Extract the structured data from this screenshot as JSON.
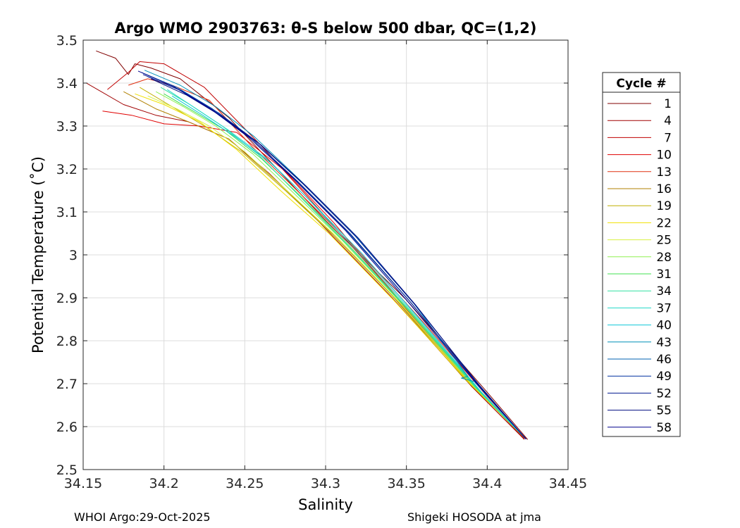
{
  "chart_data": {
    "type": "line",
    "title": "Argo WMO 2903763: θ-S below 500 dbar,  QC=(1,2)",
    "xlabel": "Salinity",
    "ylabel": "Potential Temperature (˚C)",
    "xlim": [
      34.15,
      34.45
    ],
    "ylim": [
      2.5,
      3.5
    ],
    "xticks": [
      34.15,
      34.2,
      34.25,
      34.3,
      34.35,
      34.4,
      34.45
    ],
    "xtick_labels": [
      "34.15",
      "34.2",
      "34.25",
      "34.3",
      "34.35",
      "34.4",
      "34.45"
    ],
    "yticks": [
      2.5,
      2.6,
      2.7,
      2.8,
      2.9,
      3.0,
      3.1,
      3.2,
      3.3,
      3.4,
      3.5
    ],
    "ytick_labels": [
      "2.5",
      "2.6",
      "2.7",
      "2.8",
      "2.9",
      "3",
      "3.1",
      "3.2",
      "3.3",
      "3.4",
      "3.5"
    ],
    "grid": true,
    "legend": {
      "title": "Cycle #",
      "placement": "outside-right",
      "entries": [
        {
          "label": "1",
          "color": "#800000"
        },
        {
          "label": "4",
          "color": "#a00000"
        },
        {
          "label": "7",
          "color": "#c00000"
        },
        {
          "label": "10",
          "color": "#e00000"
        },
        {
          "label": "13",
          "color": "#e03010"
        },
        {
          "label": "16",
          "color": "#b08000"
        },
        {
          "label": "19",
          "color": "#c0b000"
        },
        {
          "label": "22",
          "color": "#f0e000"
        },
        {
          "label": "25",
          "color": "#d8f040"
        },
        {
          "label": "28",
          "color": "#90f050"
        },
        {
          "label": "31",
          "color": "#40e050"
        },
        {
          "label": "34",
          "color": "#30e0a0"
        },
        {
          "label": "37",
          "color": "#20d8c8"
        },
        {
          "label": "40",
          "color": "#10c8d8"
        },
        {
          "label": "43",
          "color": "#0090b8"
        },
        {
          "label": "46",
          "color": "#0060b0"
        },
        {
          "label": "49",
          "color": "#0030a0"
        },
        {
          "label": "52",
          "color": "#001890"
        },
        {
          "label": "55",
          "color": "#000c80"
        },
        {
          "label": "58",
          "color": "#00008c"
        }
      ]
    },
    "series": [
      {
        "label": "1",
        "color": "#800000",
        "x": [
          34.158,
          34.17,
          34.178,
          34.182,
          34.192,
          34.21,
          34.24,
          34.27,
          34.3,
          34.35,
          34.4,
          34.425
        ],
        "y": [
          3.475,
          3.458,
          3.42,
          3.445,
          3.435,
          3.41,
          3.32,
          3.2,
          3.08,
          2.895,
          2.68,
          2.57
        ]
      },
      {
        "label": "4",
        "color": "#a00000",
        "x": [
          34.152,
          34.175,
          34.195,
          34.215,
          34.24,
          34.265,
          34.295,
          34.34,
          34.39,
          34.423
        ],
        "y": [
          3.4,
          3.35,
          3.325,
          3.31,
          3.27,
          3.19,
          3.08,
          2.905,
          2.695,
          2.57
        ]
      },
      {
        "label": "7",
        "color": "#c00000",
        "x": [
          34.165,
          34.178,
          34.185,
          34.2,
          34.225,
          34.26,
          34.295,
          34.34,
          34.39,
          34.423
        ],
        "y": [
          3.385,
          3.425,
          3.45,
          3.445,
          3.39,
          3.255,
          3.11,
          2.92,
          2.7,
          2.572
        ]
      },
      {
        "label": "10",
        "color": "#e00000",
        "x": [
          34.162,
          34.18,
          34.2,
          34.222,
          34.245,
          34.275,
          34.305,
          34.345,
          34.392,
          34.424
        ],
        "y": [
          3.335,
          3.325,
          3.305,
          3.3,
          3.285,
          3.195,
          3.075,
          2.895,
          2.69,
          2.571
        ]
      },
      {
        "label": "13",
        "color": "#e03010",
        "x": [
          34.178,
          34.19,
          34.205,
          34.228,
          34.255,
          34.285,
          34.32,
          34.36,
          34.4,
          34.424
        ],
        "y": [
          3.395,
          3.41,
          3.395,
          3.36,
          3.25,
          3.14,
          3.01,
          2.845,
          2.67,
          2.572
        ]
      },
      {
        "label": "16",
        "color": "#b08000",
        "x": [
          34.175,
          34.195,
          34.215,
          34.24,
          34.27,
          34.3,
          34.34,
          34.385,
          34.424
        ],
        "y": [
          3.38,
          3.34,
          3.31,
          3.27,
          3.17,
          3.065,
          2.91,
          2.715,
          2.571
        ]
      },
      {
        "label": "19",
        "color": "#c0b000",
        "x": [
          34.185,
          34.205,
          34.225,
          34.248,
          34.275,
          34.305,
          34.345,
          34.39,
          34.424
        ],
        "y": [
          3.39,
          3.345,
          3.3,
          3.24,
          3.15,
          3.045,
          2.89,
          2.698,
          2.571
        ]
      },
      {
        "label": "22",
        "color": "#f0e000",
        "x": [
          34.182,
          34.2,
          34.222,
          34.245,
          34.272,
          34.302,
          34.342,
          34.388,
          34.424
        ],
        "y": [
          3.375,
          3.35,
          3.31,
          3.245,
          3.15,
          3.05,
          2.895,
          2.705,
          2.571
        ]
      },
      {
        "label": "25",
        "color": "#d8f040",
        "x": [
          34.19,
          34.208,
          34.228,
          34.25,
          34.276,
          34.306,
          34.346,
          34.39,
          34.424
        ],
        "y": [
          3.37,
          3.34,
          3.3,
          3.24,
          3.15,
          3.045,
          2.888,
          2.7,
          2.571
        ]
      },
      {
        "label": "28",
        "color": "#90f050",
        "x": [
          34.195,
          34.212,
          34.232,
          34.255,
          34.28,
          34.31,
          34.35,
          34.392,
          34.424
        ],
        "y": [
          3.38,
          3.345,
          3.3,
          3.235,
          3.145,
          3.035,
          2.875,
          2.693,
          2.571
        ]
      },
      {
        "label": "31",
        "color": "#40e050",
        "x": [
          34.2,
          34.218,
          34.238,
          34.26,
          34.285,
          34.315,
          34.352,
          34.394,
          34.424
        ],
        "y": [
          3.375,
          3.335,
          3.29,
          3.225,
          3.135,
          3.02,
          2.87,
          2.688,
          2.571
        ]
      },
      {
        "label": "34",
        "color": "#30e0a0",
        "x": [
          34.198,
          34.216,
          34.236,
          34.258,
          34.283,
          34.313,
          34.351,
          34.393,
          34.424
        ],
        "y": [
          3.39,
          3.35,
          3.3,
          3.235,
          3.14,
          3.025,
          2.872,
          2.69,
          2.571
        ]
      },
      {
        "label": "37",
        "color": "#20d8c8",
        "x": [
          34.202,
          34.22,
          34.24,
          34.262,
          34.288,
          34.318,
          34.354,
          34.395,
          34.424
        ],
        "y": [
          3.385,
          3.34,
          3.29,
          3.228,
          3.135,
          3.015,
          2.865,
          2.685,
          2.571
        ]
      },
      {
        "label": "40",
        "color": "#10c8d8",
        "x": [
          34.205,
          34.224,
          34.244,
          34.266,
          34.292,
          34.322,
          34.356,
          34.396,
          34.424
        ],
        "y": [
          3.37,
          3.325,
          3.275,
          3.215,
          3.12,
          3.005,
          2.86,
          2.682,
          2.571
        ]
      },
      {
        "label": "43",
        "color": "#0090b8",
        "x": [
          34.188,
          34.21,
          34.232,
          34.256,
          34.284,
          34.316,
          34.354,
          34.388,
          34.384,
          34.392,
          34.424
        ],
        "y": [
          3.43,
          3.395,
          3.345,
          3.275,
          3.175,
          3.055,
          2.89,
          2.717,
          2.713,
          2.705,
          2.571
        ]
      },
      {
        "label": "46",
        "color": "#0060b0",
        "x": [
          34.186,
          34.208,
          34.23,
          34.254,
          34.282,
          34.314,
          34.352,
          34.394,
          34.424
        ],
        "y": [
          3.425,
          3.39,
          3.34,
          3.272,
          3.172,
          3.052,
          2.892,
          2.7,
          2.571
        ]
      },
      {
        "label": "49",
        "color": "#0030a0",
        "x": [
          34.19,
          34.212,
          34.234,
          34.258,
          34.286,
          34.318,
          34.355,
          34.395,
          34.424
        ],
        "y": [
          3.415,
          3.38,
          3.33,
          3.262,
          3.165,
          3.045,
          2.885,
          2.697,
          2.571
        ]
      },
      {
        "label": "52",
        "color": "#001890",
        "x": [
          34.187,
          34.209,
          34.231,
          34.255,
          34.283,
          34.315,
          34.353,
          34.394,
          34.424
        ],
        "y": [
          3.42,
          3.385,
          3.335,
          3.268,
          3.17,
          3.05,
          2.888,
          2.699,
          2.571
        ]
      },
      {
        "label": "55",
        "color": "#000c80",
        "x": [
          34.192,
          34.214,
          34.236,
          34.26,
          34.288,
          34.32,
          34.356,
          34.395,
          34.424
        ],
        "y": [
          3.41,
          3.372,
          3.322,
          3.256,
          3.16,
          3.04,
          2.882,
          2.696,
          2.571
        ]
      },
      {
        "label": "58",
        "color": "#00008c",
        "x": [
          34.184,
          34.206,
          34.228,
          34.252,
          34.28,
          34.312,
          34.35,
          34.393,
          34.424
        ],
        "y": [
          3.428,
          3.392,
          3.342,
          3.275,
          3.178,
          3.058,
          2.895,
          2.702,
          2.571
        ]
      }
    ]
  },
  "footer": {
    "left": "WHOI Argo:29-Oct-2025",
    "right": "Shigeki HOSODA at jma"
  }
}
